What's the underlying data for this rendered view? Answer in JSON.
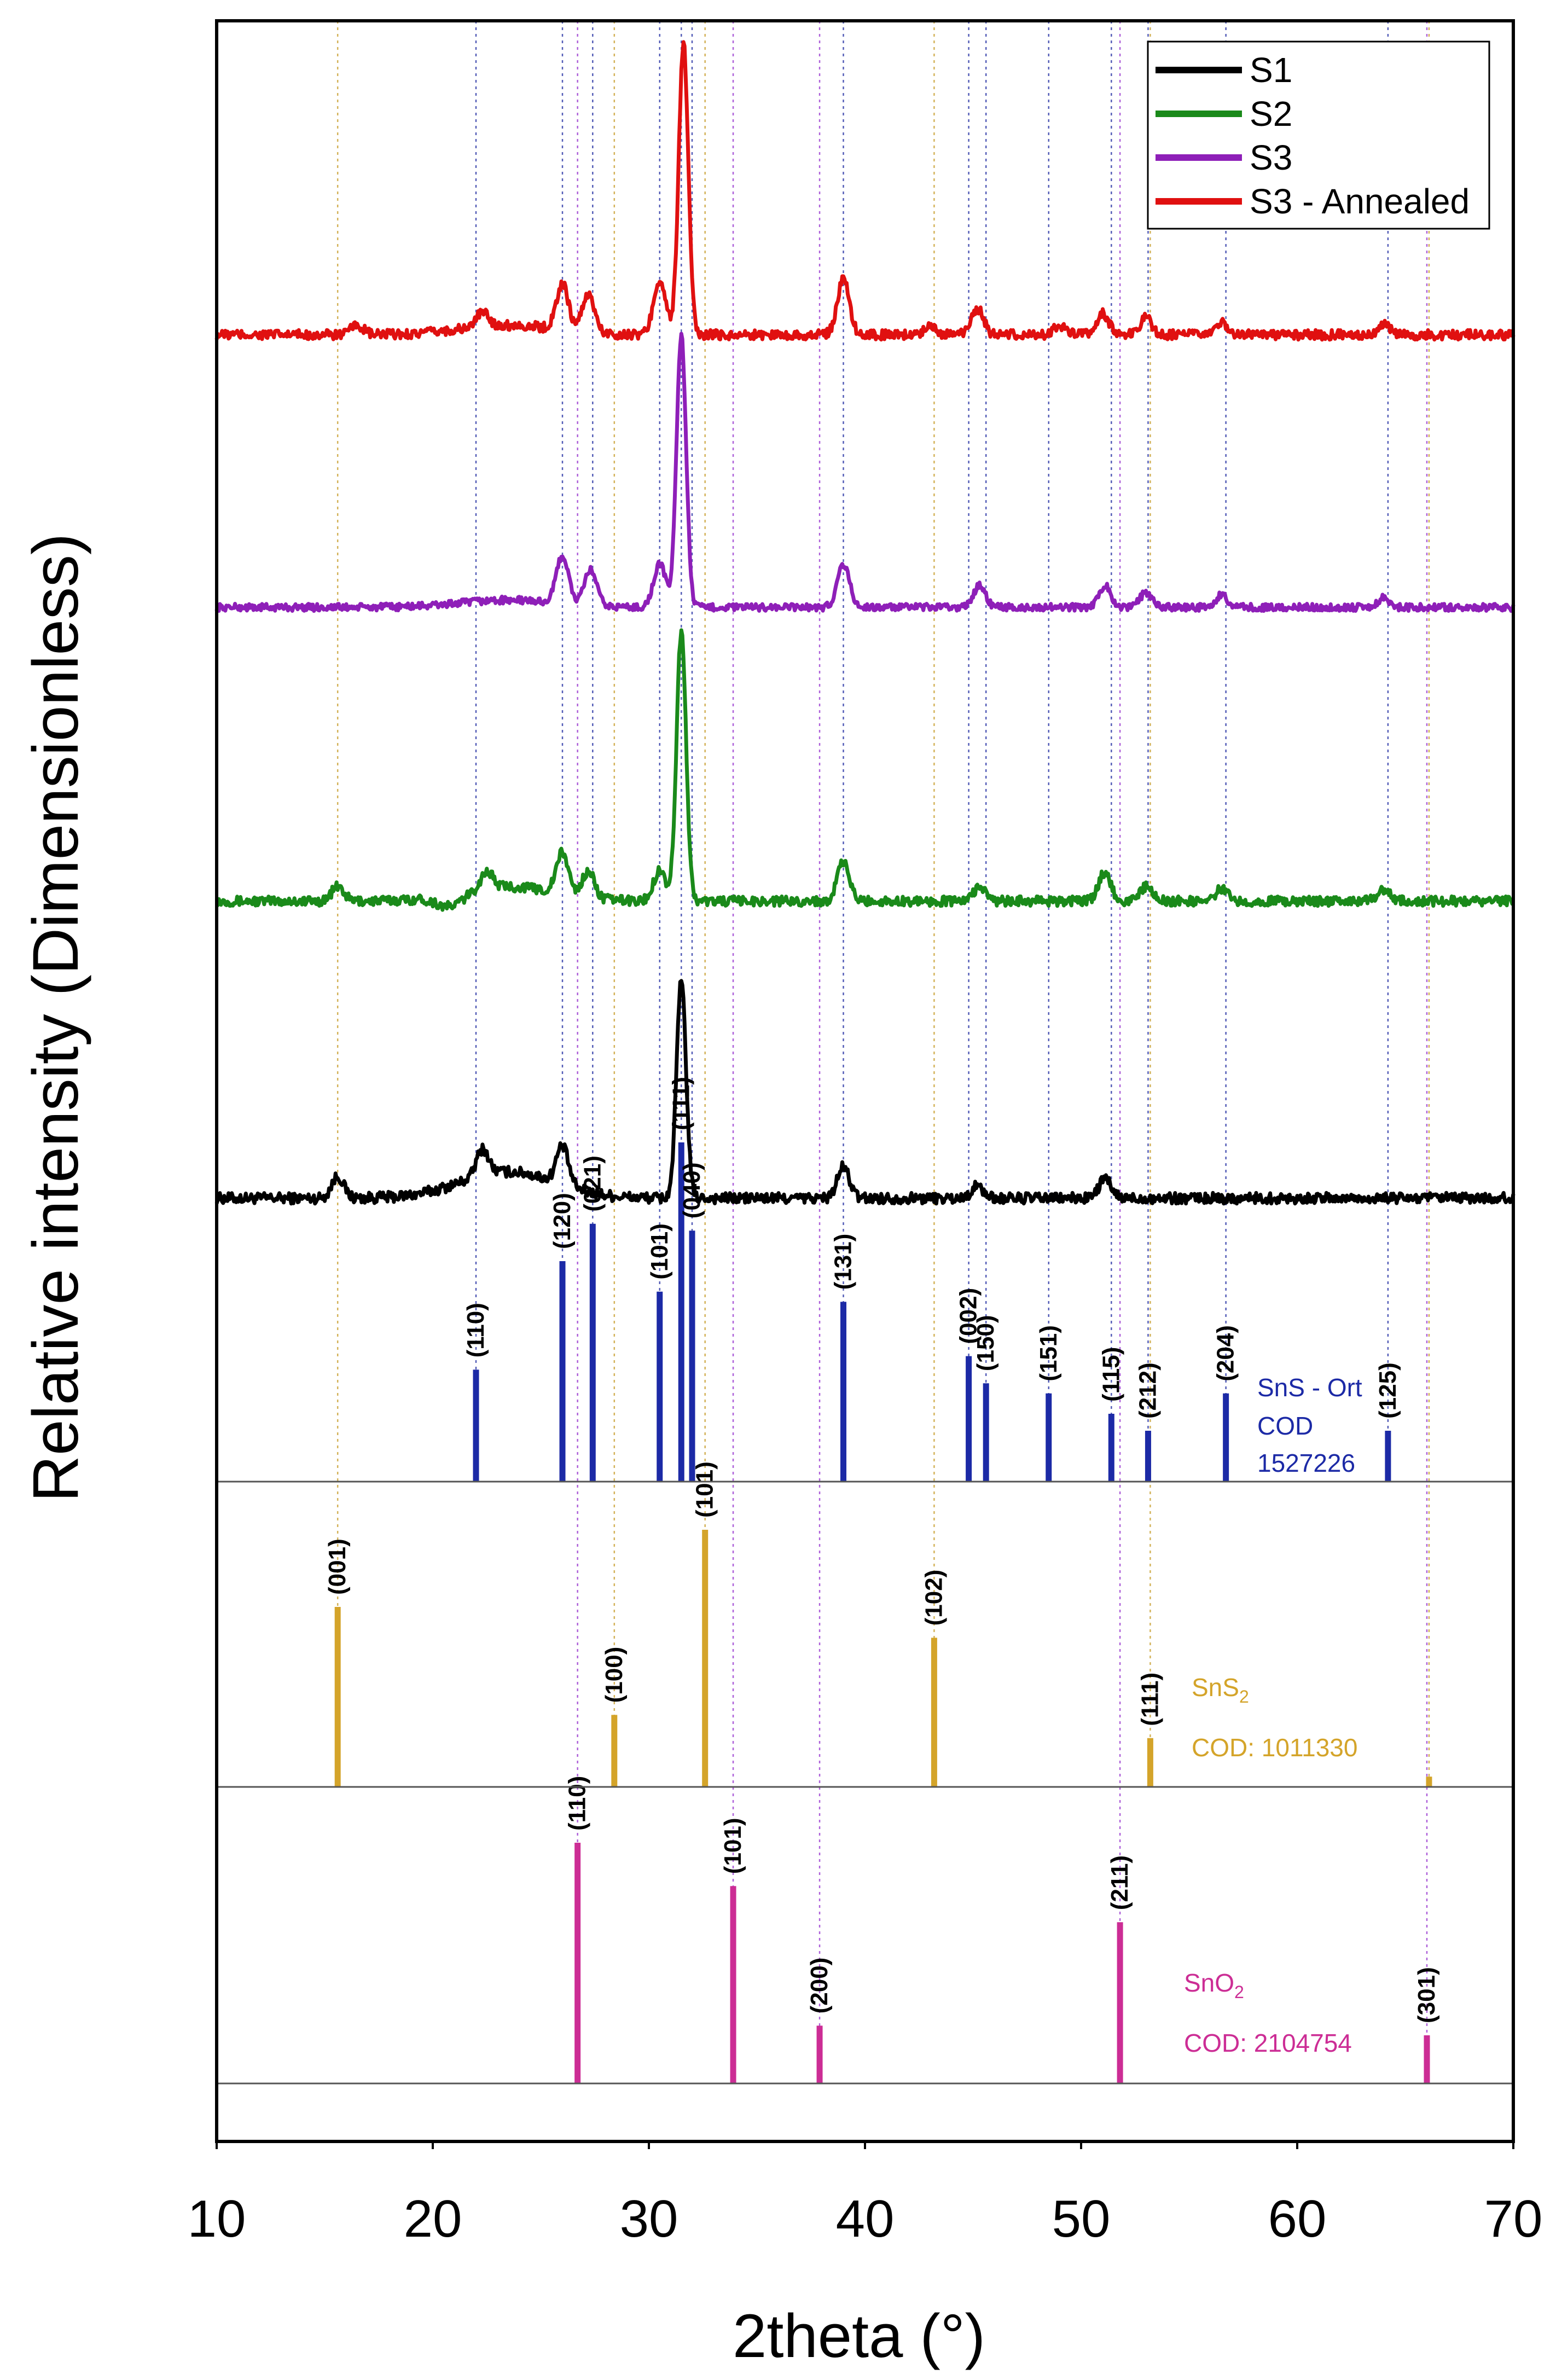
{
  "chart_data": {
    "type": "line",
    "xlabel": "2theta (°)",
    "ylabel": "Relative intensity (Dimensionless)",
    "xlim": [
      10,
      70
    ],
    "x_ticks": [
      "10",
      "20",
      "30",
      "40",
      "50",
      "60",
      "70"
    ],
    "legend": {
      "position": "top-right",
      "entries": [
        {
          "name": "S1",
          "color": "#000000"
        },
        {
          "name": "S2",
          "color": "#1a8a1a"
        },
        {
          "name": "S3",
          "color": "#8e1fb8"
        },
        {
          "name": "S3 - Annealed",
          "color": "#e01010"
        }
      ]
    },
    "series": [
      {
        "name": "S1",
        "color": "#000000",
        "noise": 0.45,
        "hump": [
          0,
          1.1,
          0.7
        ],
        "peaks": [
          [
            15.6,
            0.9
          ],
          [
            22.3,
            1.1
          ],
          [
            26.0,
            1.6
          ],
          [
            31.5,
            9.0
          ],
          [
            39.0,
            1.3
          ],
          [
            45.2,
            0.5
          ],
          [
            51.1,
            0.8
          ]
        ]
      },
      {
        "name": "S2",
        "color": "#1a8a1a",
        "noise": 0.4,
        "hump": [
          -0.5,
          0.6,
          0.4
        ],
        "peaks": [
          [
            15.6,
            0.6
          ],
          [
            22.5,
            0.7
          ],
          [
            26.0,
            1.7
          ],
          [
            27.2,
            1.1
          ],
          [
            30.5,
            1.3
          ],
          [
            31.5,
            11.2
          ],
          [
            39.0,
            1.6
          ],
          [
            45.3,
            0.6
          ],
          [
            51.1,
            1.2
          ],
          [
            53.0,
            0.6
          ],
          [
            56.5,
            0.5
          ],
          [
            64.0,
            0.5
          ]
        ]
      },
      {
        "name": "S3",
        "color": "#8e1fb8",
        "noise": 0.3,
        "hump": [
          0,
          0.3,
          0.3
        ],
        "peaks": [
          [
            26.0,
            2.0
          ],
          [
            27.3,
            1.5
          ],
          [
            30.5,
            1.8
          ],
          [
            31.5,
            11.3
          ],
          [
            39.0,
            1.8
          ],
          [
            45.3,
            0.9
          ],
          [
            51.1,
            0.9
          ],
          [
            53.0,
            0.6
          ],
          [
            56.5,
            0.5
          ],
          [
            64.0,
            0.4
          ]
        ]
      },
      {
        "name": "S3 - Annealed",
        "color": "#e01010",
        "noise": 0.4,
        "hump": [
          0,
          0.4,
          0.3
        ],
        "peaks": [
          [
            16.5,
            0.4
          ],
          [
            22.3,
            0.6
          ],
          [
            26.0,
            1.9
          ],
          [
            27.2,
            1.6
          ],
          [
            30.5,
            2.3
          ],
          [
            31.6,
            12.1
          ],
          [
            39.0,
            2.3
          ],
          [
            43.0,
            0.4
          ],
          [
            45.2,
            1.1
          ],
          [
            49.0,
            0.4
          ],
          [
            51.0,
            0.9
          ],
          [
            53.0,
            0.7
          ],
          [
            56.5,
            0.5
          ],
          [
            64.0,
            0.4
          ]
        ]
      }
    ],
    "references": [
      {
        "name": "SnS - Ort",
        "code": "COD",
        "code_number": "1527226",
        "color": "#1c2aa6",
        "guide_color": "#2a35a6",
        "peaks": [
          {
            "x": 22.0,
            "rel": 0.33,
            "hkl": "(110)"
          },
          {
            "x": 26.0,
            "rel": 0.65,
            "hkl": "(120)"
          },
          {
            "x": 27.4,
            "rel": 0.76,
            "hkl": "(021)"
          },
          {
            "x": 30.5,
            "rel": 0.56,
            "hkl": "(101)"
          },
          {
            "x": 31.5,
            "rel": 1.0,
            "hkl": "(111)"
          },
          {
            "x": 32.0,
            "rel": 0.74,
            "hkl": "(040)"
          },
          {
            "x": 39.0,
            "rel": 0.53,
            "hkl": "(131)"
          },
          {
            "x": 44.8,
            "rel": 0.37,
            "hkl": "(002)"
          },
          {
            "x": 45.6,
            "rel": 0.29,
            "hkl": "(150)"
          },
          {
            "x": 48.5,
            "rel": 0.26,
            "hkl": "(151)"
          },
          {
            "x": 51.4,
            "rel": 0.2,
            "hkl": "(115)"
          },
          {
            "x": 53.1,
            "rel": 0.15,
            "hkl": "(212)"
          },
          {
            "x": 56.7,
            "rel": 0.26,
            "hkl": "(204)"
          },
          {
            "x": 64.2,
            "rel": 0.15,
            "hkl": "(125)"
          }
        ]
      },
      {
        "name": "SnS",
        "subscript": "2",
        "code": "COD: 1011330",
        "color": "#d4a42a",
        "guide_color": "#c9a030",
        "peaks": [
          {
            "x": 15.6,
            "rel": 0.7,
            "hkl": "(001)"
          },
          {
            "x": 28.4,
            "rel": 0.28,
            "hkl": "(100)"
          },
          {
            "x": 32.6,
            "rel": 1.0,
            "hkl": "(101)"
          },
          {
            "x": 43.2,
            "rel": 0.58,
            "hkl": "(102)"
          },
          {
            "x": 53.2,
            "rel": 0.19,
            "hkl": "(111)"
          },
          {
            "x": 66.1,
            "rel": 0.04,
            "hkl": ""
          }
        ]
      },
      {
        "name": "SnO",
        "subscript": "2",
        "code": "COD: 2104754",
        "color": "#cc2d95",
        "guide_color": "#9a3ad0",
        "peaks": [
          {
            "x": 26.7,
            "rel": 1.0,
            "hkl": "(110)"
          },
          {
            "x": 33.9,
            "rel": 0.82,
            "hkl": "(101)"
          },
          {
            "x": 37.9,
            "rel": 0.24,
            "hkl": "(200)"
          },
          {
            "x": 51.8,
            "rel": 0.67,
            "hkl": "(211)"
          },
          {
            "x": 66.0,
            "rel": 0.2,
            "hkl": "(301)"
          }
        ]
      }
    ]
  }
}
